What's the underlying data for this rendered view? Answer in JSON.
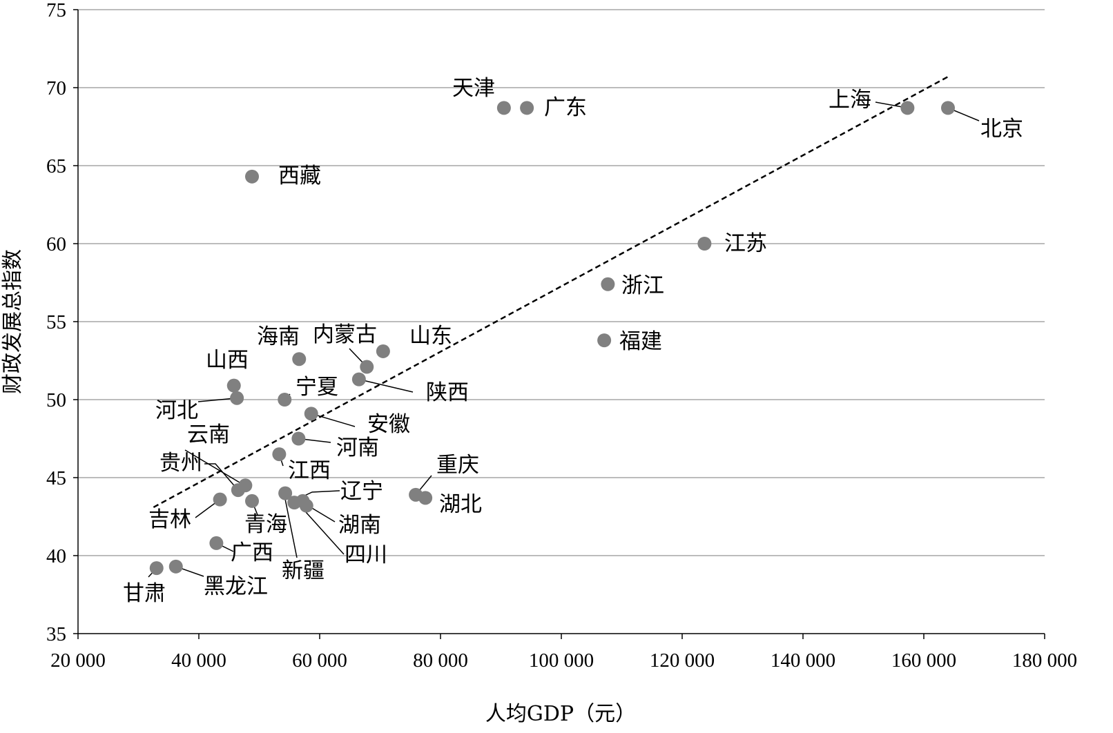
{
  "chart_data": {
    "type": "scatter",
    "xlabel": "人均GDP（元）",
    "ylabel": "财政发展总指数",
    "xlim": [
      20000,
      180000
    ],
    "ylim": [
      35,
      75
    ],
    "x_ticks": [
      20000,
      40000,
      60000,
      80000,
      100000,
      120000,
      140000,
      160000,
      180000
    ],
    "x_tick_labels": [
      "20 000",
      "40 000",
      "60 000",
      "80 000",
      "100 000",
      "120 000",
      "140 000",
      "160 000",
      "180 000"
    ],
    "y_ticks": [
      35,
      40,
      45,
      50,
      55,
      60,
      65,
      70,
      75
    ],
    "y_tick_labels": [
      "35",
      "40",
      "45",
      "50",
      "55",
      "60",
      "65",
      "70",
      "75"
    ],
    "grid": "horizontal",
    "marker_color": "#808080",
    "trendline": {
      "style": "dashed",
      "start": [
        32500,
        43.1
      ],
      "end": [
        164000,
        70.7
      ]
    },
    "points": [
      {
        "name": "北京",
        "x": 164000,
        "y": 68.7
      },
      {
        "name": "上海",
        "x": 157300,
        "y": 68.7
      },
      {
        "name": "天津",
        "x": 90500,
        "y": 68.7
      },
      {
        "name": "广东",
        "x": 94300,
        "y": 68.7
      },
      {
        "name": "西藏",
        "x": 48800,
        "y": 64.3
      },
      {
        "name": "江苏",
        "x": 123700,
        "y": 60.0
      },
      {
        "name": "浙江",
        "x": 107700,
        "y": 57.4
      },
      {
        "name": "福建",
        "x": 107100,
        "y": 53.8
      },
      {
        "name": "山东",
        "x": 70500,
        "y": 53.1
      },
      {
        "name": "内蒙古",
        "x": 67800,
        "y": 52.1
      },
      {
        "name": "海南",
        "x": 56600,
        "y": 52.6
      },
      {
        "name": "陕西",
        "x": 66500,
        "y": 51.3
      },
      {
        "name": "山西",
        "x": 45800,
        "y": 50.9
      },
      {
        "name": "河北",
        "x": 46300,
        "y": 50.1
      },
      {
        "name": "宁夏",
        "x": 54200,
        "y": 50.0
      },
      {
        "name": "安徽",
        "x": 58600,
        "y": 49.1
      },
      {
        "name": "河南",
        "x": 56500,
        "y": 47.5
      },
      {
        "name": "江西",
        "x": 53300,
        "y": 46.5
      },
      {
        "name": "云南",
        "x": 47700,
        "y": 44.5
      },
      {
        "name": "贵州",
        "x": 46500,
        "y": 44.2
      },
      {
        "name": "青海",
        "x": 48800,
        "y": 43.5
      },
      {
        "name": "吉林",
        "x": 43500,
        "y": 43.6
      },
      {
        "name": "新疆",
        "x": 54300,
        "y": 44.0
      },
      {
        "name": "四川",
        "x": 55800,
        "y": 43.4
      },
      {
        "name": "辽宁",
        "x": 57200,
        "y": 43.5
      },
      {
        "name": "湖南",
        "x": 57800,
        "y": 43.2
      },
      {
        "name": "重庆",
        "x": 75900,
        "y": 43.9
      },
      {
        "name": "湖北",
        "x": 77500,
        "y": 43.7
      },
      {
        "name": "广西",
        "x": 42900,
        "y": 40.8
      },
      {
        "name": "甘肃",
        "x": 33000,
        "y": 39.2
      },
      {
        "name": "黑龙江",
        "x": 36200,
        "y": 39.3
      }
    ]
  }
}
